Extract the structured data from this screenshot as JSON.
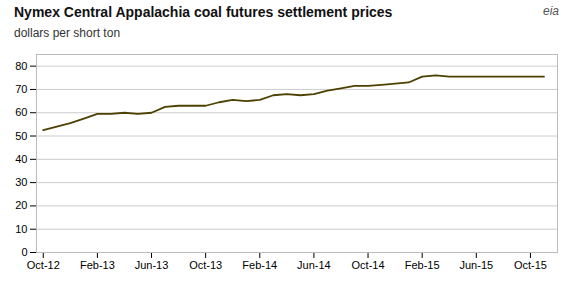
{
  "chart_data": {
    "type": "line",
    "title": "Nymex Central  Appalachia coal futures settlement prices",
    "subtitle": "dollars per short ton",
    "annotations": [
      "eia"
    ],
    "color": "#4d4000",
    "x": [
      0,
      1,
      2,
      3,
      4,
      5,
      6,
      7,
      8,
      9,
      10,
      11,
      12,
      13,
      14,
      15,
      16,
      17,
      18,
      19,
      20,
      21,
      22,
      23,
      24,
      25,
      26,
      27,
      28,
      29,
      30,
      31,
      32,
      33,
      34,
      35,
      36,
      37
    ],
    "values": [
      52.5,
      54.0,
      55.5,
      57.5,
      59.5,
      59.5,
      60.0,
      59.5,
      60.0,
      62.5,
      63.0,
      63.0,
      63.0,
      64.5,
      65.5,
      65.0,
      65.5,
      67.5,
      68.0,
      67.5,
      68.0,
      69.5,
      70.5,
      71.5,
      71.5,
      72.0,
      72.5,
      73.0,
      75.5,
      76.0,
      75.5,
      75.5,
      75.5,
      75.5,
      75.5,
      75.5,
      75.5,
      75.5
    ],
    "xlim": [
      -0.5,
      38.0
    ],
    "xticks": [
      {
        "value": 0,
        "label": "Oct-12"
      },
      {
        "value": 4,
        "label": "Feb-13"
      },
      {
        "value": 8,
        "label": "Jun-13"
      },
      {
        "value": 12,
        "label": "Oct-13"
      },
      {
        "value": 16,
        "label": "Feb-14"
      },
      {
        "value": 20,
        "label": "Jun-14"
      },
      {
        "value": 24,
        "label": "Oct-14"
      },
      {
        "value": 28,
        "label": "Feb-15"
      },
      {
        "value": 32,
        "label": "Jun-15"
      },
      {
        "value": 36,
        "label": "Oct-15"
      }
    ],
    "ylim": [
      0,
      85
    ],
    "yticks": [
      0,
      10,
      20,
      30,
      40,
      50,
      60,
      70,
      80
    ],
    "grid": true
  }
}
